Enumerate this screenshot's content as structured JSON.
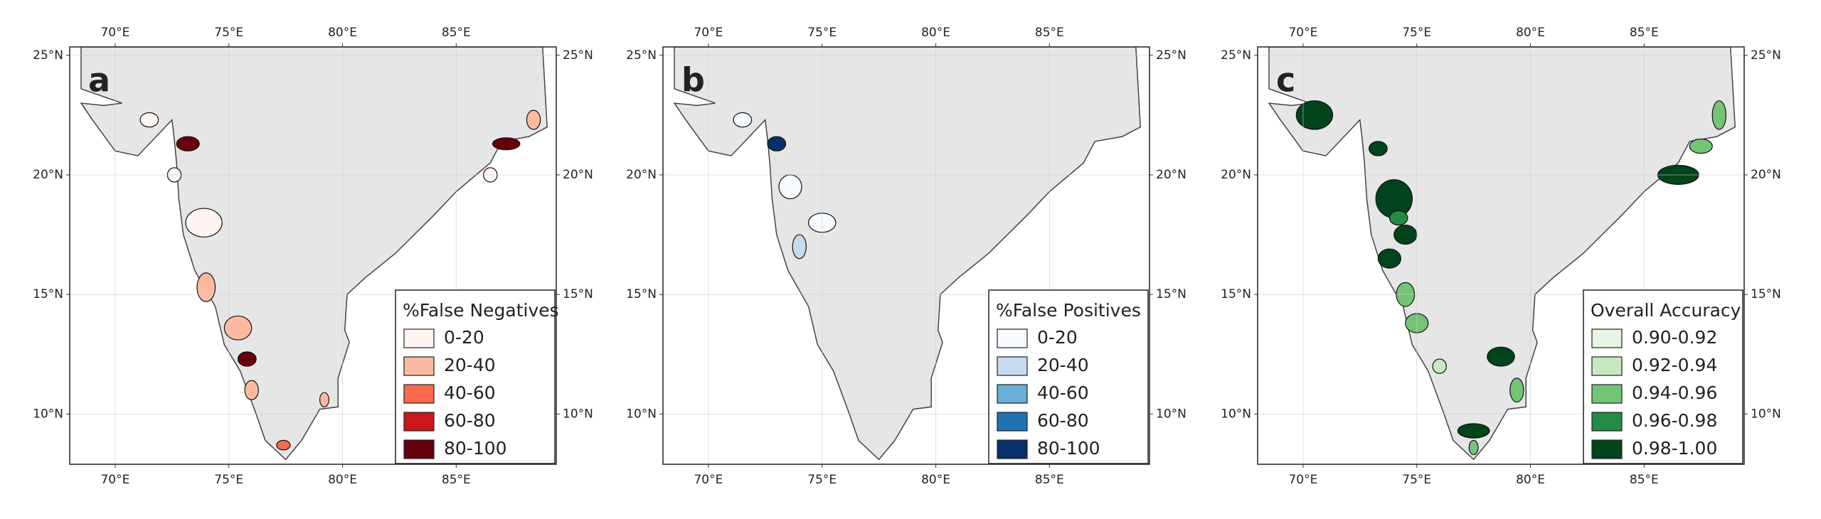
{
  "axes": {
    "xlim": [
      68,
      89.4
    ],
    "ylim": [
      7.9,
      25.35
    ],
    "xticks": [
      {
        "value": 70,
        "label": "70°E"
      },
      {
        "value": 75,
        "label": "75°E"
      },
      {
        "value": 80,
        "label": "80°E"
      },
      {
        "value": 85,
        "label": "85°E"
      }
    ],
    "yticks": [
      {
        "value": 10,
        "label": "10°N"
      },
      {
        "value": 15,
        "label": "15°N"
      },
      {
        "value": 20,
        "label": "20°N"
      },
      {
        "value": 25,
        "label": "25°N"
      }
    ]
  },
  "panels": [
    {
      "label": "a",
      "legend": {
        "title": "%False Negatives",
        "items": [
          {
            "label": "0-20",
            "color": "#fff5f0"
          },
          {
            "label": "20-40",
            "color": "#fcbba1"
          },
          {
            "label": "40-60",
            "color": "#fb6a4a"
          },
          {
            "label": "60-80",
            "color": "#cb181d"
          },
          {
            "label": "80-100",
            "color": "#67000d"
          }
        ]
      }
    },
    {
      "label": "b",
      "legend": {
        "title": "%False Positives",
        "items": [
          {
            "label": "0-20",
            "color": "#f7fbff"
          },
          {
            "label": "20-40",
            "color": "#c6dbef"
          },
          {
            "label": "40-60",
            "color": "#6baed6"
          },
          {
            "label": "60-80",
            "color": "#2171b5"
          },
          {
            "label": "80-100",
            "color": "#08306b"
          }
        ]
      }
    },
    {
      "label": "c",
      "legend": {
        "title": "Overall Accuracy",
        "items": [
          {
            "label": "0.90-0.92",
            "color": "#e5f5e0"
          },
          {
            "label": "0.92-0.94",
            "color": "#c7e9c0"
          },
          {
            "label": "0.94-0.96",
            "color": "#74c476"
          },
          {
            "label": "0.96-0.98",
            "color": "#238b45"
          },
          {
            "label": "0.98-1.00",
            "color": "#00441b"
          }
        ]
      }
    }
  ]
}
